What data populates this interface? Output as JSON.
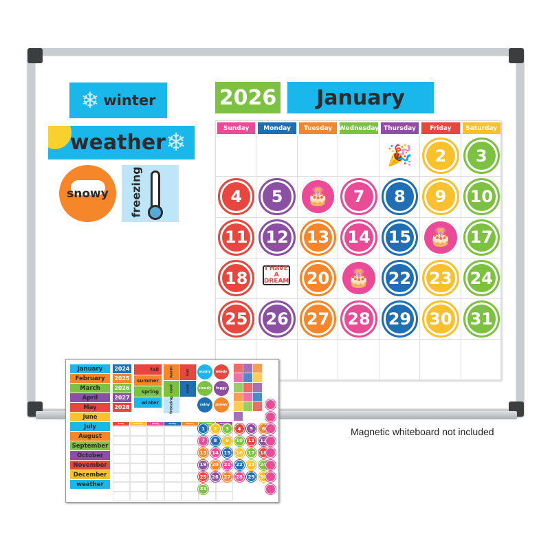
{
  "colors": {
    "red": "#e8473f",
    "purple": "#8b4fa3",
    "orange": "#f5862a",
    "pink": "#e94b96",
    "blue": "#1f6fb5",
    "yellow": "#f9c12e",
    "green": "#7dc142",
    "cyan": "#1ab7ea",
    "lightblue": "#bfe6f8"
  },
  "side_cards": {
    "season": "winter",
    "weather": "weather",
    "condition": "snowy",
    "temperature": "freezing"
  },
  "calendar": {
    "year": "2026",
    "month": "January",
    "days": [
      {
        "label": "Sunday",
        "color": "pink"
      },
      {
        "label": "Monday",
        "color": "blue"
      },
      {
        "label": "Tuesday",
        "color": "orange"
      },
      {
        "label": "Wednesday",
        "color": "green"
      },
      {
        "label": "Thursday",
        "color": "purple"
      },
      {
        "label": "Friday",
        "color": "red"
      },
      {
        "label": "Saturday",
        "color": "yellow"
      }
    ],
    "first_weekday": 4,
    "cells": [
      {
        "type": "icon",
        "icon": "party-hat-icon"
      },
      {
        "n": "2",
        "color": "yellow"
      },
      {
        "n": "3",
        "color": "green"
      },
      {
        "n": "4",
        "color": "red"
      },
      {
        "n": "5",
        "color": "purple"
      },
      {
        "type": "icon",
        "icon": "birthday-cake-icon",
        "color": "pink"
      },
      {
        "n": "7",
        "color": "pink"
      },
      {
        "n": "8",
        "color": "blue"
      },
      {
        "n": "9",
        "color": "yellow"
      },
      {
        "n": "10",
        "color": "green"
      },
      {
        "n": "11",
        "color": "red"
      },
      {
        "n": "12",
        "color": "purple"
      },
      {
        "n": "13",
        "color": "orange"
      },
      {
        "n": "14",
        "color": "pink"
      },
      {
        "n": "15",
        "color": "blue"
      },
      {
        "type": "icon",
        "icon": "birthday-cake-icon",
        "color": "pink"
      },
      {
        "n": "17",
        "color": "green"
      },
      {
        "n": "18",
        "color": "red"
      },
      {
        "type": "text",
        "text": "I HAVE A DREAM"
      },
      {
        "n": "20",
        "color": "orange"
      },
      {
        "type": "icon",
        "icon": "birthday-cake-icon",
        "color": "pink"
      },
      {
        "n": "22",
        "color": "blue"
      },
      {
        "n": "23",
        "color": "yellow"
      },
      {
        "n": "24",
        "color": "green"
      },
      {
        "n": "25",
        "color": "red"
      },
      {
        "n": "26",
        "color": "purple"
      },
      {
        "n": "27",
        "color": "orange"
      },
      {
        "n": "28",
        "color": "pink"
      },
      {
        "n": "29",
        "color": "blue"
      },
      {
        "n": "30",
        "color": "yellow"
      },
      {
        "n": "31",
        "color": "green"
      }
    ]
  },
  "kit": {
    "months": [
      {
        "label": "January",
        "color": "cyan"
      },
      {
        "label": "February",
        "color": "orange"
      },
      {
        "label": "March",
        "color": "green"
      },
      {
        "label": "April",
        "color": "purple"
      },
      {
        "label": "May",
        "color": "red"
      },
      {
        "label": "June",
        "color": "yellow"
      },
      {
        "label": "July",
        "color": "cyan"
      },
      {
        "label": "August",
        "color": "orange"
      },
      {
        "label": "September",
        "color": "green"
      },
      {
        "label": "October",
        "color": "purple"
      },
      {
        "label": "November",
        "color": "red"
      },
      {
        "label": "December",
        "color": "yellow"
      },
      {
        "label": "weather",
        "color": "cyan"
      }
    ],
    "years": [
      {
        "label": "2024",
        "color": "blue"
      },
      {
        "label": "2025",
        "color": "orange"
      },
      {
        "label": "2026",
        "color": "green"
      },
      {
        "label": "2027",
        "color": "purple"
      },
      {
        "label": "2028",
        "color": "red"
      }
    ],
    "seasons": [
      {
        "label": "fall",
        "color": "red"
      },
      {
        "label": "summer",
        "color": "orange"
      },
      {
        "label": "spring",
        "color": "green"
      },
      {
        "label": "winter",
        "color": "cyan"
      }
    ],
    "temperatures": [
      {
        "label": "warm",
        "color": "orange"
      },
      {
        "label": "hot",
        "color": "red"
      },
      {
        "label": "cool",
        "color": "green"
      },
      {
        "label": "cold",
        "color": "blue"
      },
      {
        "label": "freezing",
        "color": "lightblue"
      }
    ],
    "weather": [
      {
        "label": "sunny",
        "color": "cyan"
      },
      {
        "label": "windy",
        "color": "red"
      },
      {
        "label": "cloudy",
        "color": "green"
      },
      {
        "label": "foggy",
        "color": "purple"
      },
      {
        "label": "rainy",
        "color": "blue"
      },
      {
        "label": "snowy",
        "color": "orange"
      }
    ],
    "mini_days": [
      "Friday",
      "Saturday",
      "Sunday",
      "Monday",
      "Tuesday",
      "Wednesday",
      "Thursday"
    ],
    "number_colors": [
      "blue",
      "yellow",
      "green",
      "red",
      "purple",
      "orange",
      "pink"
    ]
  },
  "caption": "Magnetic whiteboard not included"
}
